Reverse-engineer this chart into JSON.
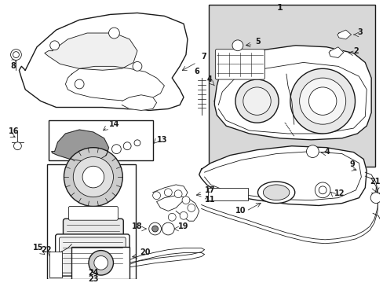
{
  "bg_color": "#ffffff",
  "line_color": "#1a1a1a",
  "shaded_box_color": "#d8d8d8",
  "figsize": [
    4.89,
    3.6
  ],
  "dpi": 100
}
